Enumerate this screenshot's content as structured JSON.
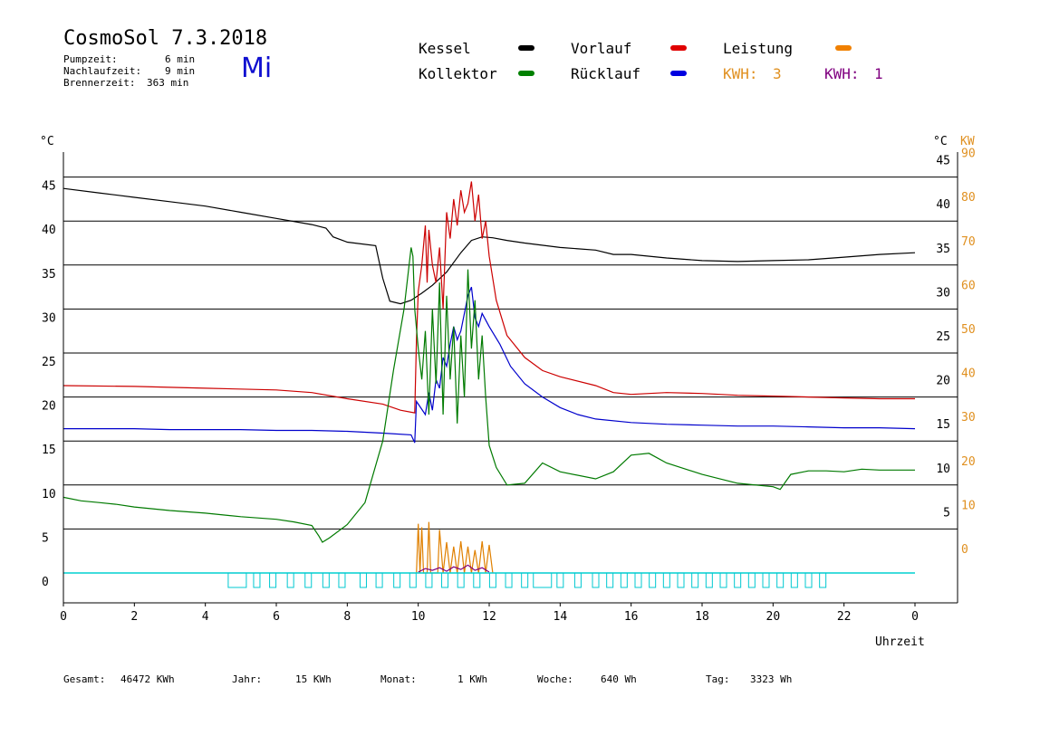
{
  "header": {
    "title": "CosmoSol 7.3.2018",
    "day": "Mi",
    "stats": [
      {
        "label": "Pumpzeit:",
        "value": "6 min"
      },
      {
        "label": "Nachlaufzeit:",
        "value": "9 min"
      },
      {
        "label": "Brennerzeit:",
        "value": "363 min"
      }
    ]
  },
  "legend": {
    "kessel": {
      "label": "Kessel",
      "color": "#000000"
    },
    "vorlauf": {
      "label": "Vorlauf",
      "color": "#e00000"
    },
    "leistung": {
      "label": "Leistung",
      "color": "#f08000"
    },
    "kollektor": {
      "label": "Kollektor",
      "color": "#008000"
    },
    "ruecklauf": {
      "label": "Rücklauf",
      "color": "#0000e0"
    },
    "kwh_orange": {
      "label": "KWH:",
      "value": "3",
      "color": "#e09020"
    },
    "kwh_purple": {
      "label": "KWH:",
      "value": "1",
      "color": "#800080"
    }
  },
  "footer": {
    "gesamt": {
      "label": "Gesamt:",
      "value": "46472 KWh"
    },
    "jahr": {
      "label": "Jahr:",
      "value": "15 KWh"
    },
    "monat": {
      "label": "Monat:",
      "value": "1 KWh"
    },
    "woche": {
      "label": "Woche:",
      "value": "640 Wh"
    },
    "tag": {
      "label": "Tag:",
      "value": "3323 Wh"
    }
  },
  "chart_data": {
    "type": "line",
    "xlabel": "Uhrzeit",
    "ylabel_left": "°C",
    "ylabel_right": "°C",
    "ylabel_right2": "KW",
    "xlim": [
      0,
      24
    ],
    "ylim": [
      -3.5,
      48
    ],
    "grid": true,
    "x_ticks": [
      "0",
      "2",
      "4",
      "6",
      "8",
      "10",
      "12",
      "14",
      "16",
      "18",
      "20",
      "22",
      "0"
    ],
    "y_ticks_left": [
      "0",
      "5",
      "10",
      "15",
      "20",
      "25",
      "30",
      "35",
      "40",
      "45"
    ],
    "y_ticks_right": [
      "5",
      "10",
      "15",
      "20",
      "25",
      "30",
      "35",
      "40",
      "45"
    ],
    "y_ticks_kw": [
      "0",
      "10",
      "20",
      "30",
      "40",
      "50",
      "60",
      "70",
      "80",
      "90"
    ],
    "series": [
      {
        "name": "Kessel",
        "color": "#000000",
        "x": [
          0,
          1,
          2,
          3,
          4,
          5,
          6,
          7,
          7.4,
          7.6,
          8,
          8.8,
          9.0,
          9.2,
          9.5,
          9.8,
          10.1,
          10.4,
          10.8,
          11.2,
          11.5,
          11.8,
          12.1,
          12.5,
          13,
          14,
          15,
          15.5,
          16,
          17,
          18,
          19,
          20,
          21,
          22,
          23,
          24
        ],
        "y": [
          43.7,
          43.2,
          42.7,
          42.2,
          41.7,
          41.0,
          40.3,
          39.6,
          39.2,
          38.2,
          37.6,
          37.2,
          33.5,
          30.9,
          30.6,
          31.0,
          31.8,
          32.7,
          34.2,
          36.4,
          37.8,
          38.2,
          38.1,
          37.8,
          37.5,
          37.0,
          36.7,
          36.2,
          36.2,
          35.8,
          35.5,
          35.4,
          35.5,
          35.6,
          35.9,
          36.2,
          36.4
        ]
      },
      {
        "name": "Vorlauf",
        "color": "#cc0000",
        "x": [
          0,
          2,
          4,
          6,
          7,
          8,
          9,
          9.5,
          9.9,
          9.95,
          10.0,
          10.1,
          10.2,
          10.25,
          10.3,
          10.4,
          10.5,
          10.6,
          10.7,
          10.8,
          10.9,
          11.0,
          11.1,
          11.2,
          11.3,
          11.4,
          11.5,
          11.6,
          11.7,
          11.8,
          11.9,
          12.0,
          12.2,
          12.5,
          13,
          13.5,
          14,
          15,
          15.5,
          16,
          17,
          18,
          19,
          20,
          21,
          22,
          23,
          24
        ],
        "y": [
          21.3,
          21.2,
          21.0,
          20.8,
          20.5,
          19.8,
          19.2,
          18.5,
          18.2,
          26.5,
          32.0,
          35.0,
          39.5,
          33.0,
          39.0,
          35.0,
          33.0,
          37.0,
          30.0,
          41.0,
          38.0,
          42.5,
          39.5,
          43.5,
          41.0,
          42.0,
          44.5,
          40.0,
          43.0,
          38.0,
          40.0,
          36.0,
          31.0,
          27.0,
          24.5,
          23.0,
          22.3,
          21.3,
          20.5,
          20.3,
          20.5,
          20.4,
          20.2,
          20.1,
          20.0,
          19.9,
          19.8,
          19.8
        ]
      },
      {
        "name": "Rücklauf",
        "color": "#0000cc",
        "x": [
          0,
          1,
          2,
          3,
          4,
          5,
          6,
          7,
          8,
          9,
          9.8,
          9.9,
          9.95,
          10.0,
          10.2,
          10.3,
          10.4,
          10.5,
          10.6,
          10.7,
          10.8,
          10.9,
          11.0,
          11.1,
          11.2,
          11.3,
          11.4,
          11.5,
          11.6,
          11.7,
          11.8,
          12.0,
          12.3,
          12.6,
          13,
          13.5,
          14,
          14.5,
          15,
          16,
          17,
          18,
          19,
          20,
          21,
          22,
          23,
          24
        ],
        "y": [
          16.4,
          16.4,
          16.4,
          16.3,
          16.3,
          16.3,
          16.2,
          16.2,
          16.1,
          15.9,
          15.7,
          14.8,
          19.5,
          19.2,
          18.0,
          20.5,
          18.5,
          22.0,
          21.0,
          24.5,
          23.5,
          26.0,
          28.0,
          26.5,
          27.5,
          29.5,
          31.5,
          32.5,
          29.0,
          28.0,
          29.5,
          28.0,
          26.0,
          23.5,
          21.5,
          20.0,
          18.8,
          18.0,
          17.5,
          17.1,
          16.9,
          16.8,
          16.7,
          16.7,
          16.6,
          16.5,
          16.5,
          16.4
        ]
      },
      {
        "name": "Kollektor",
        "color": "#007a00",
        "x": [
          0,
          0.5,
          1,
          1.5,
          2,
          3,
          4,
          5,
          6,
          6.5,
          7,
          7.2,
          7.3,
          7.5,
          8,
          8.5,
          9,
          9.3,
          9.6,
          9.8,
          9.85,
          9.9,
          10.0,
          10.1,
          10.2,
          10.3,
          10.4,
          10.5,
          10.6,
          10.7,
          10.8,
          10.9,
          11.0,
          11.1,
          11.2,
          11.3,
          11.4,
          11.5,
          11.6,
          11.7,
          11.8,
          11.9,
          12.0,
          12.2,
          12.5,
          13,
          13.5,
          14,
          15,
          15.5,
          16,
          16.5,
          17,
          18,
          19,
          20,
          20.2,
          20.5,
          21,
          21.5,
          22,
          22.5,
          23,
          24
        ],
        "y": [
          8.6,
          8.2,
          8.0,
          7.8,
          7.5,
          7.1,
          6.8,
          6.4,
          6.1,
          5.8,
          5.4,
          4.2,
          3.5,
          4.0,
          5.5,
          8.0,
          15.0,
          23.0,
          30.0,
          37.0,
          36.0,
          30.0,
          25.5,
          22.0,
          27.5,
          18.0,
          30.0,
          21.5,
          33.0,
          18.0,
          31.5,
          22.0,
          28.0,
          17.0,
          27.0,
          20.0,
          34.5,
          25.5,
          31.0,
          22.0,
          27.0,
          20.0,
          14.5,
          12.0,
          10.0,
          10.2,
          12.5,
          11.5,
          10.7,
          11.5,
          13.4,
          13.6,
          12.5,
          11.2,
          10.2,
          9.8,
          9.5,
          11.2,
          11.6,
          11.6,
          11.5,
          11.8,
          11.7,
          11.7
        ]
      },
      {
        "name": "Leistung",
        "color": "#e08000",
        "x": [
          9.95,
          10.0,
          10.05,
          10.1,
          10.15,
          10.25,
          10.3,
          10.35,
          10.45,
          10.55,
          10.6,
          10.7,
          10.8,
          10.9,
          11.0,
          11.1,
          11.2,
          11.3,
          11.4,
          11.5,
          11.6,
          11.7,
          11.8,
          11.9,
          12.0,
          12.1
        ],
        "y": [
          0,
          5.6,
          0,
          5.2,
          0,
          0,
          5.8,
          0,
          0,
          0,
          4.9,
          0,
          3.5,
          0,
          3.0,
          0,
          3.6,
          0,
          3.0,
          0,
          2.6,
          0,
          3.6,
          0,
          3.2,
          0
        ]
      },
      {
        "name": "KWH-Linie",
        "color": "#800080",
        "x": [
          10.0,
          10.2,
          10.4,
          10.6,
          10.8,
          11.0,
          11.2,
          11.4,
          11.6,
          11.8,
          12.0
        ],
        "y": [
          0.1,
          0.5,
          0.3,
          0.6,
          0.2,
          0.7,
          0.4,
          0.9,
          0.3,
          0.6,
          0.1
        ]
      },
      {
        "name": "Baseline",
        "color": "#00d0d0",
        "x": [
          0,
          24
        ],
        "y": [
          0,
          0
        ]
      }
    ],
    "pump_markers_x": [
      4.9,
      5.45,
      5.9,
      6.4,
      6.9,
      7.4,
      7.85,
      8.45,
      8.9,
      9.4,
      9.85,
      10.3,
      10.75,
      11.2,
      11.65,
      12.1,
      12.55,
      13.0,
      13.5,
      14.0,
      14.5,
      15.0,
      15.4,
      15.8,
      16.2,
      16.6,
      17.0,
      17.4,
      17.8,
      18.2,
      18.6,
      19.0,
      19.4,
      19.8,
      20.2,
      20.6,
      21.0,
      21.4
    ]
  }
}
